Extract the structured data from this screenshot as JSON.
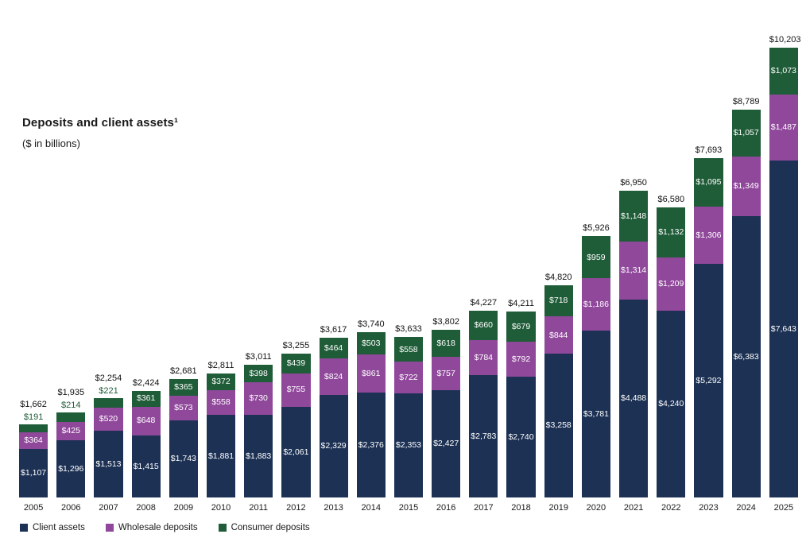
{
  "chart": {
    "title": "Deposits and client assets¹",
    "subtitle": "($ in billions)"
  },
  "chart_data": {
    "type": "bar",
    "stacked": true,
    "title": "Deposits and client assets¹",
    "subtitle": "($ in billions)",
    "grid": false,
    "legend_position": "bottom",
    "categories": [
      "2005",
      "2006",
      "2007",
      "2008",
      "2009",
      "2010",
      "2011",
      "2012",
      "2013",
      "2014",
      "2015",
      "2016",
      "2017",
      "2018",
      "2019",
      "2020",
      "2021",
      "2022",
      "2023",
      "2024",
      "2025"
    ],
    "series": [
      {
        "name": "Client assets",
        "color": "#1c3154",
        "values": [
          1107,
          1296,
          1513,
          1415,
          1743,
          1881,
          1883,
          2061,
          2329,
          2376,
          2353,
          2427,
          2783,
          2740,
          3258,
          3781,
          4488,
          4240,
          5292,
          6383,
          7643
        ]
      },
      {
        "name": "Wholesale deposits",
        "color": "#90489b",
        "values": [
          364,
          425,
          520,
          648,
          573,
          558,
          730,
          755,
          824,
          861,
          722,
          757,
          784,
          792,
          844,
          1186,
          1314,
          1209,
          1306,
          1349,
          1487
        ]
      },
      {
        "name": "Consumer deposits",
        "color": "#1f5c38",
        "values": [
          191,
          214,
          221,
          361,
          365,
          372,
          398,
          439,
          464,
          503,
          558,
          618,
          660,
          679,
          718,
          959,
          1148,
          1132,
          1095,
          1057,
          1073
        ]
      }
    ],
    "totals": [
      1662,
      1935,
      2254,
      2424,
      2681,
      2811,
      3011,
      3255,
      3617,
      3740,
      3633,
      3802,
      4227,
      4211,
      4820,
      5926,
      6950,
      6580,
      7693,
      8789,
      10203
    ]
  }
}
